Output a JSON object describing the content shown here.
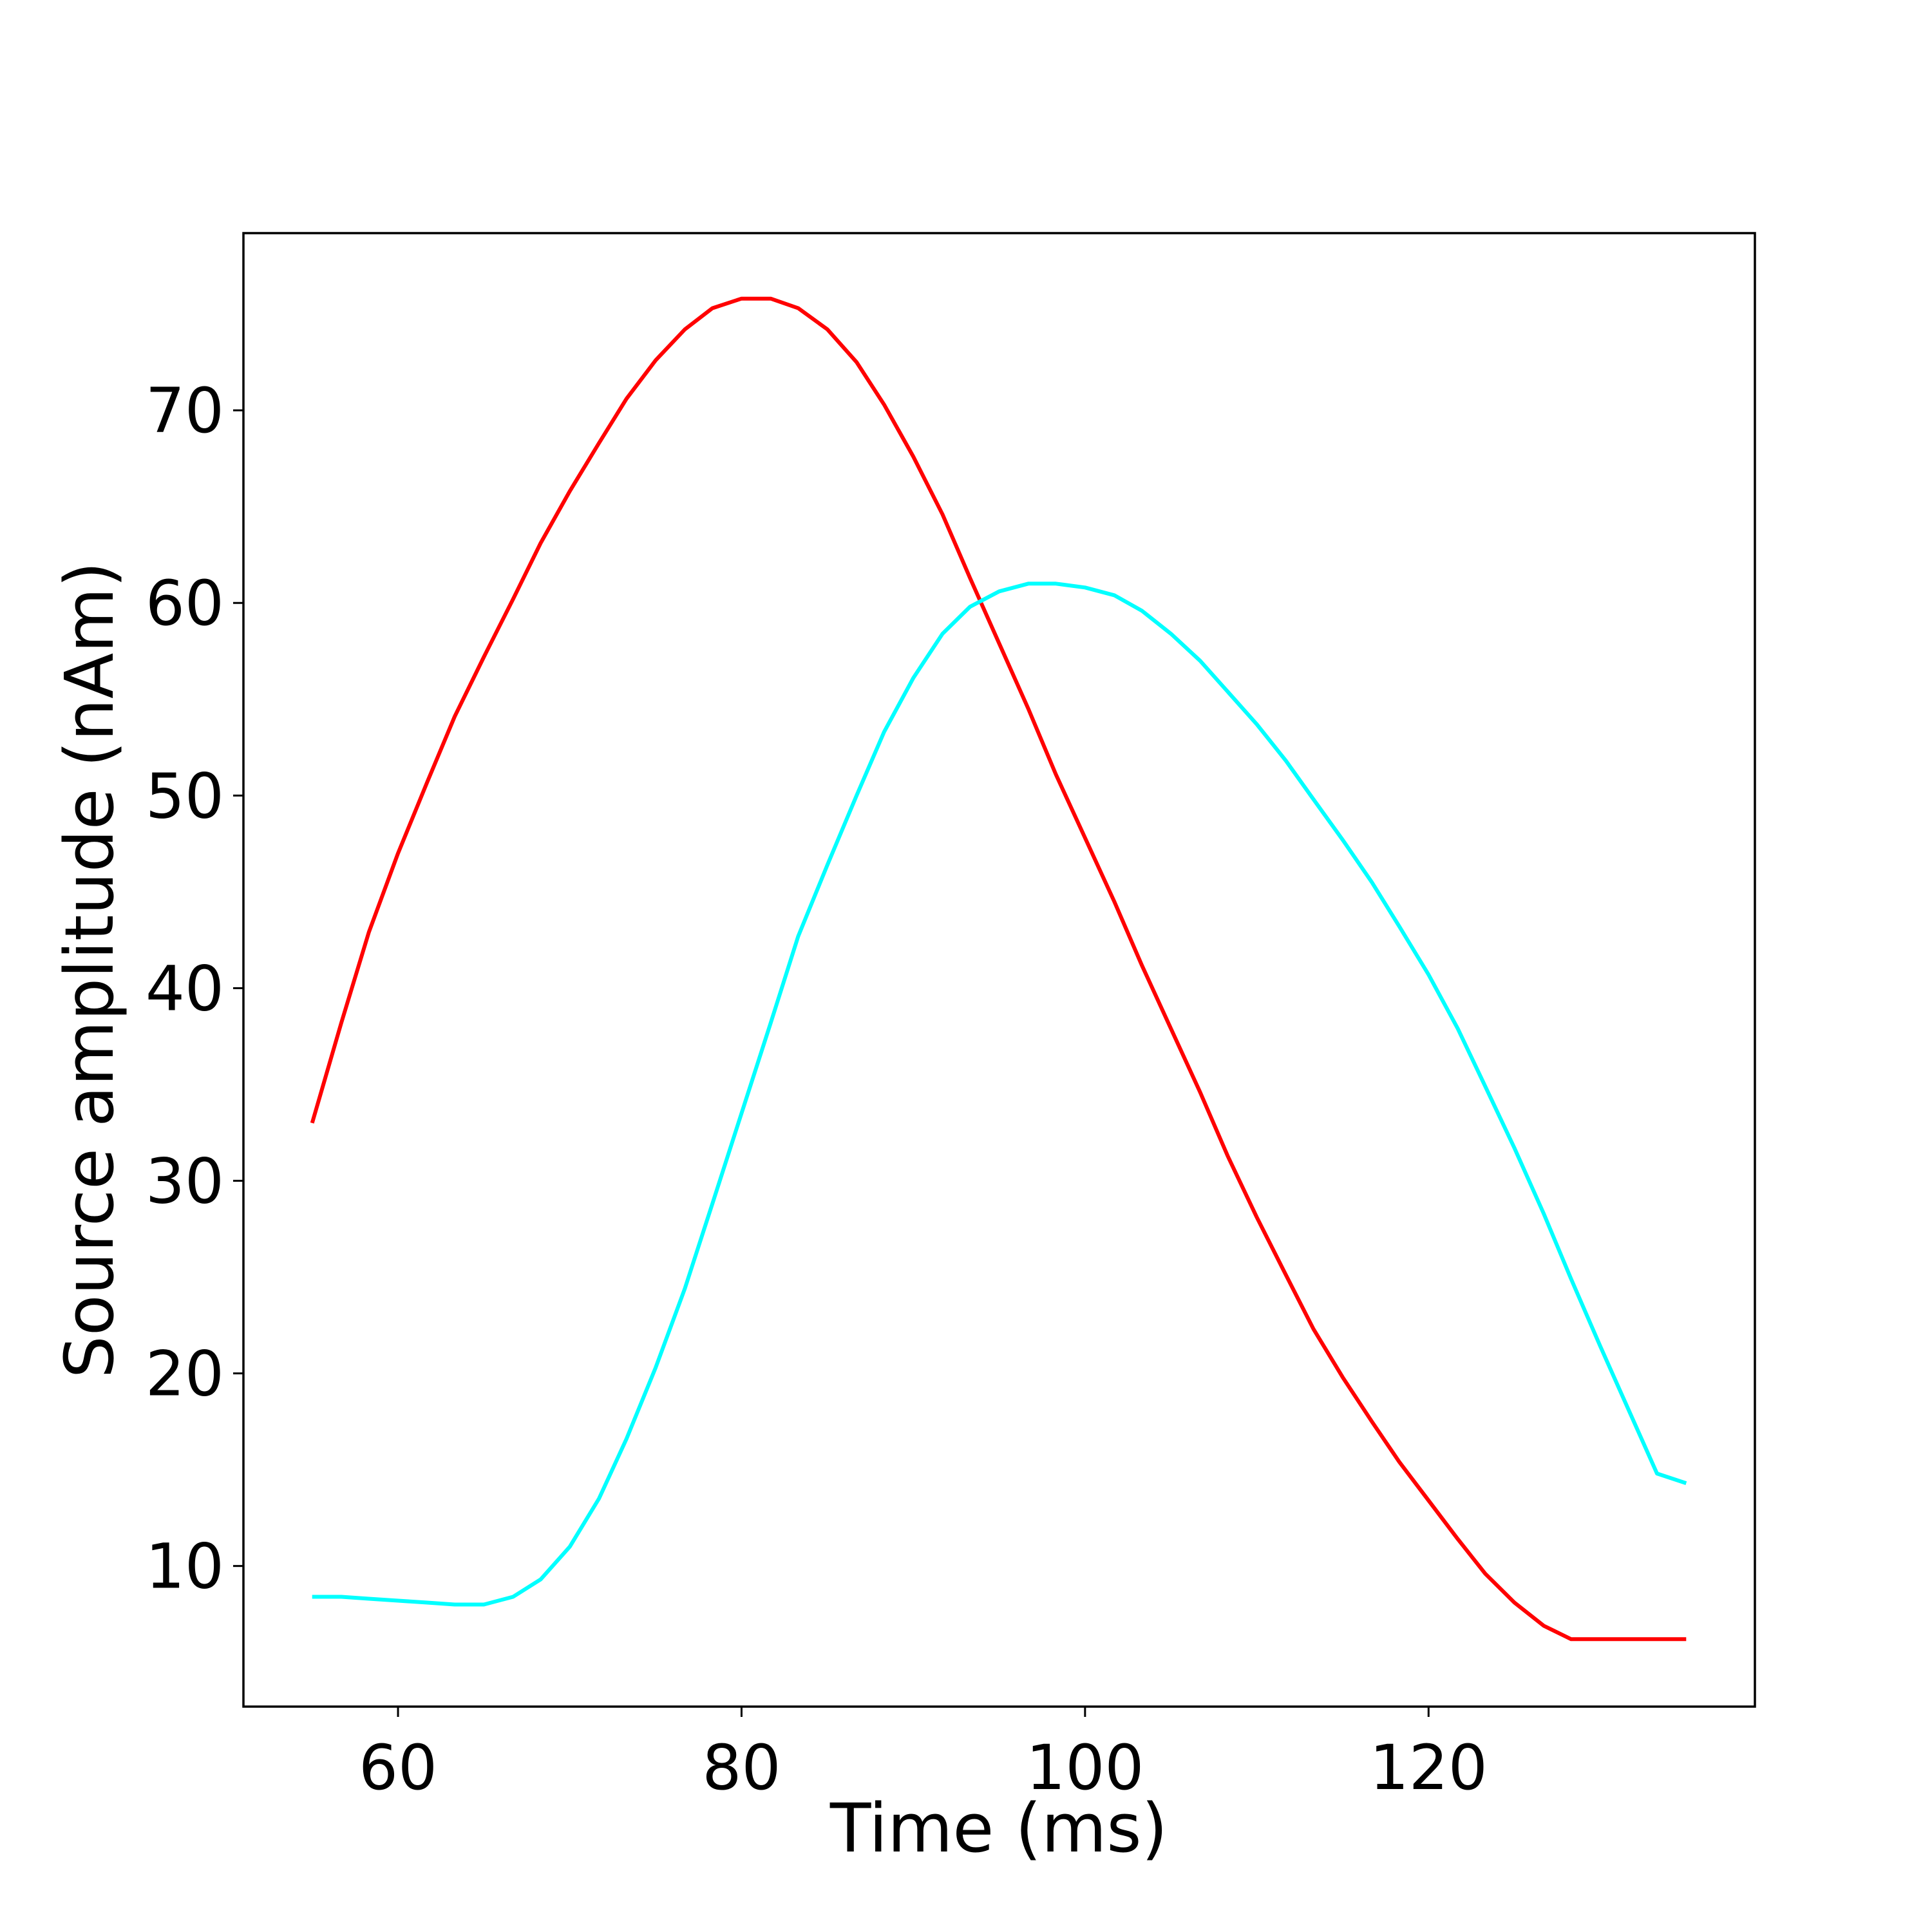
{
  "chart_data": {
    "type": "line",
    "title": "",
    "xlabel": "Time (ms)",
    "ylabel": "Source amplitude (nAm)",
    "xlim": [
      51,
      139
    ],
    "ylim": [
      2.7,
      79.2
    ],
    "xticks": [
      60,
      80,
      100,
      120
    ],
    "yticks": [
      10,
      20,
      30,
      40,
      50,
      60,
      70
    ],
    "grid": false,
    "legend": "none",
    "x": [
      55,
      56.7,
      58.3,
      60,
      61.7,
      63.3,
      65,
      66.7,
      68.3,
      70,
      71.7,
      73.3,
      75,
      76.7,
      78.3,
      80,
      81.7,
      83.3,
      85,
      86.7,
      88.3,
      90,
      91.7,
      93.3,
      95,
      96.7,
      98.3,
      100,
      101.7,
      103.3,
      105,
      106.7,
      108.3,
      110,
      111.7,
      113.3,
      115,
      116.7,
      118.3,
      120,
      121.7,
      123.3,
      125,
      126.7,
      128.3,
      130,
      131.7,
      133.3,
      135
    ],
    "series": [
      {
        "color": "#ff0000",
        "values": [
          33.0,
          38.2,
          42.9,
          47.0,
          50.7,
          54.1,
          57.2,
          60.2,
          63.1,
          65.8,
          68.3,
          70.6,
          72.6,
          74.2,
          75.3,
          75.8,
          75.8,
          75.3,
          74.2,
          72.5,
          70.3,
          67.6,
          64.6,
          61.3,
          57.9,
          54.5,
          51.1,
          47.8,
          44.5,
          41.2,
          37.9,
          34.6,
          31.3,
          28.1,
          25.1,
          22.3,
          19.8,
          17.5,
          15.4,
          13.4,
          11.4,
          9.6,
          8.1,
          6.9,
          6.2,
          6.2,
          6.2,
          6.2,
          6.2
        ]
      },
      {
        "color": "#00ffff",
        "values": [
          8.4,
          8.4,
          8.3,
          8.2,
          8.1,
          8.0,
          8.0,
          8.4,
          9.3,
          11.0,
          13.5,
          16.6,
          20.3,
          24.4,
          28.8,
          33.5,
          38.2,
          42.7,
          46.4,
          50.0,
          53.3,
          56.1,
          58.4,
          59.8,
          60.6,
          61.0,
          61.0,
          60.8,
          60.4,
          59.6,
          58.4,
          57.0,
          55.4,
          53.7,
          51.8,
          49.8,
          47.7,
          45.5,
          43.2,
          40.7,
          37.9,
          34.9,
          31.7,
          28.3,
          24.9,
          21.4,
          18.0,
          14.8,
          14.3
        ]
      }
    ]
  }
}
